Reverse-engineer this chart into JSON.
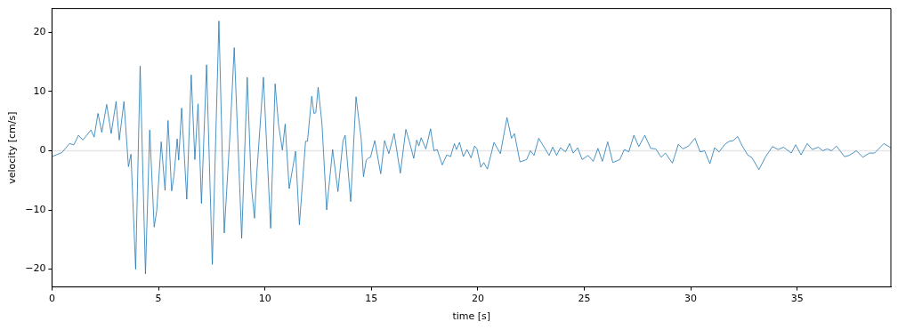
{
  "chart_data": {
    "type": "line",
    "xlabel": "time [s]",
    "ylabel": "velocity [cm/s]",
    "xlim": [
      0,
      39.4
    ],
    "ylim": [
      -23,
      24
    ],
    "xticks": [
      0,
      5,
      10,
      15,
      20,
      25,
      30,
      35
    ],
    "yticks": [
      -20,
      -10,
      0,
      10,
      20
    ],
    "grid": false,
    "legend": false,
    "marker": "none",
    "line_style": "solid",
    "ref_lines": [
      {
        "axis": "y",
        "value": 0,
        "color": "#e6e6e6"
      }
    ],
    "series": [
      {
        "color": "#1f77b4",
        "x": [
          0,
          0.47,
          0.82,
          1.03,
          1.24,
          1.45,
          1.83,
          1.98,
          2.16,
          2.34,
          2.57,
          2.78,
          3.01,
          3.16,
          3.38,
          3.59,
          3.71,
          3.93,
          4.14,
          4.39,
          4.59,
          4.8,
          4.92,
          5.13,
          5.31,
          5.45,
          5.62,
          5.73,
          5.88,
          5.95,
          6.09,
          6.33,
          6.54,
          6.71,
          6.86,
          7.02,
          7.26,
          7.53,
          7.84,
          8.09,
          8.38,
          8.56,
          8.91,
          9.17,
          9.36,
          9.51,
          9.62,
          9.93,
          10.27,
          10.48,
          10.64,
          10.82,
          10.95,
          11.14,
          11.44,
          11.62,
          11.91,
          12.0,
          12.2,
          12.3,
          12.39,
          12.5,
          12.68,
          12.9,
          13.18,
          13.43,
          13.67,
          13.77,
          14.03,
          14.28,
          14.52,
          14.63,
          14.76,
          14.87,
          14.96,
          15.16,
          15.44,
          15.62,
          15.82,
          16.07,
          16.36,
          16.62,
          16.78,
          16.99,
          17.13,
          17.23,
          17.34,
          17.56,
          17.78,
          17.94,
          18.09,
          18.33,
          18.54,
          18.72,
          18.9,
          19.0,
          19.14,
          19.32,
          19.49,
          19.68,
          19.85,
          19.96,
          20.14,
          20.28,
          20.45,
          20.76,
          21.06,
          21.37,
          21.58,
          21.72,
          21.98,
          22.29,
          22.47,
          22.64,
          22.86,
          23.35,
          23.52,
          23.7,
          23.88,
          24.12,
          24.31,
          24.48,
          24.69,
          24.9,
          25.18,
          25.42,
          25.64,
          25.85,
          26.1,
          26.34,
          26.67,
          26.88,
          27.09,
          27.33,
          27.56,
          27.84,
          28.12,
          28.36,
          28.61,
          28.81,
          29.14,
          29.42,
          29.63,
          29.9,
          30.2,
          30.44,
          30.65,
          30.9,
          31.12,
          31.33,
          31.61,
          31.82,
          32.0,
          32.2,
          32.42,
          32.67,
          32.88,
          33.2,
          33.52,
          33.84,
          34.11,
          34.36,
          34.72,
          34.93,
          35.18,
          35.47,
          35.71,
          35.99,
          36.2,
          36.41,
          36.62,
          36.84,
          37.22,
          37.44,
          37.78,
          38.08,
          38.39,
          38.63,
          39.07,
          39.4
        ],
        "values": [
          -1,
          -0.3,
          1.2,
          1.0,
          2.6,
          1.8,
          3.5,
          2.3,
          6.3,
          3.1,
          7.8,
          2.9,
          8.3,
          1.8,
          8.3,
          -2.7,
          -0.6,
          -20,
          14.3,
          -20.8,
          3.5,
          -12.9,
          -10.1,
          1.5,
          -6.7,
          5.1,
          -6.8,
          -4.2,
          2,
          -1.6,
          7.2,
          -8.2,
          12.8,
          -1.5,
          7.9,
          -8.9,
          14.5,
          -19.2,
          21.9,
          -13.9,
          4.1,
          17.4,
          -14.8,
          12.4,
          -5.8,
          -11.4,
          -3.8,
          12.4,
          -13.1,
          11.3,
          4.4,
          0.1,
          4.5,
          -6.4,
          -0.1,
          -12.5,
          1.6,
          1.6,
          9.2,
          6.3,
          6.4,
          10.7,
          4.6,
          -10,
          0.2,
          -6.9,
          1.7,
          2.6,
          -8.6,
          9.1,
          2.1,
          -4.4,
          -1.6,
          -1.2,
          -1.1,
          1.7,
          -3.9,
          1.7,
          -0.5,
          2.9,
          -3.8,
          3.6,
          1.6,
          -1.3,
          1.8,
          0.8,
          2.2,
          0.3,
          3.7,
          0,
          0.2,
          -2.4,
          -0.7,
          -1,
          1.2,
          0.2,
          1.4,
          -1,
          0.2,
          -1.2,
          0.8,
          0.3,
          -2.8,
          -2,
          -3.1,
          1.4,
          -0.5,
          5.6,
          2.1,
          2.9,
          -1.9,
          -1.5,
          0,
          -0.8,
          2.1,
          -0.8,
          0.6,
          -0.8,
          0.5,
          -0.2,
          1.2,
          -0.4,
          0.5,
          -1.5,
          -0.8,
          -1.8,
          0.4,
          -1.8,
          1.5,
          -2,
          -1.5,
          0.2,
          -0.2,
          2.6,
          0.7,
          2.6,
          0.4,
          0.3,
          -1.1,
          -0.4,
          -2.1,
          1.1,
          0.3,
          0.8,
          2.1,
          -0.2,
          0,
          -2.2,
          0.5,
          -0.2,
          1.1,
          1.6,
          1.7,
          2.4,
          0.8,
          -0.7,
          -1.2,
          -3.2,
          -1,
          0.7,
          0.2,
          0.6,
          -0.4,
          1,
          -0.7,
          1.2,
          0.2,
          0.6,
          0,
          0.3,
          0,
          0.8,
          -1,
          -0.8,
          0,
          -1.1,
          -0.4,
          -0.4,
          1.2,
          0.5
        ]
      }
    ]
  }
}
